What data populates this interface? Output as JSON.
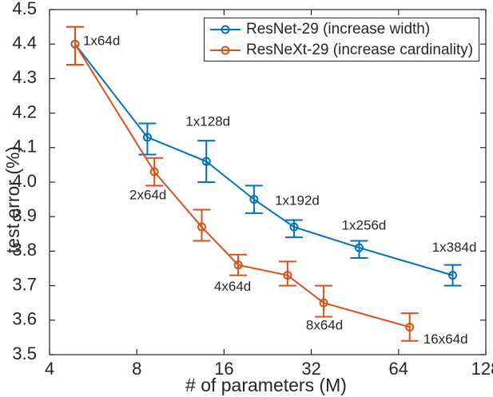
{
  "figure": {
    "background": "#ffffff",
    "axis_color": "#262626",
    "text_color": "#262626"
  },
  "chart_data": {
    "type": "line",
    "title": "",
    "xlabel": "# of parameters (M)",
    "ylabel": "test error (%)",
    "x_scale": "log2",
    "xlim": [
      4,
      128
    ],
    "ylim": [
      3.5,
      4.5
    ],
    "x_ticks": [
      4,
      8,
      16,
      32,
      64,
      128
    ],
    "x_tick_labels": [
      "4",
      "8",
      "16",
      "32",
      "64",
      "128"
    ],
    "y_ticks": [
      3.5,
      3.6,
      3.7,
      3.8,
      3.9,
      4.0,
      4.1,
      4.2,
      4.3,
      4.4,
      4.5
    ],
    "y_tick_labels": [
      "3.5",
      "3.6",
      "3.7",
      "3.8",
      "3.9",
      "4.0",
      "4.1",
      "4.2",
      "4.3",
      "4.4",
      "4.5"
    ],
    "grid": false,
    "legend_position": "top-right-inside",
    "series": [
      {
        "name": "ResNet-29 (increase width)",
        "color": "#0072BD",
        "points": [
          {
            "x": 4.9,
            "y": 4.4,
            "err_low": 4.34,
            "err_high": 4.45,
            "label": "1x64d",
            "label_dx": 10,
            "label_dy": -3,
            "label_anchor": "start"
          },
          {
            "x": 8.7,
            "y": 4.13,
            "err_low": 4.08,
            "err_high": 4.17
          },
          {
            "x": 13.9,
            "y": 4.06,
            "err_low": 4.0,
            "err_high": 4.12,
            "label": "1x128d",
            "label_dx": 2,
            "label_dy": -49
          },
          {
            "x": 20.3,
            "y": 3.95,
            "err_low": 3.91,
            "err_high": 3.99
          },
          {
            "x": 27.9,
            "y": 3.87,
            "err_low": 3.84,
            "err_high": 3.89,
            "label": "1x192d",
            "label_dx": 4,
            "label_dy": -32
          },
          {
            "x": 46.8,
            "y": 3.81,
            "err_low": 3.78,
            "err_high": 3.83,
            "label": "1x256d",
            "label_dx": 6,
            "label_dy": -27
          },
          {
            "x": 98.4,
            "y": 3.73,
            "err_low": 3.7,
            "err_high": 3.76,
            "label": "1x384d",
            "label_dx": 2,
            "label_dy": -34
          }
        ]
      },
      {
        "name": "ResNeXt-29 (increase cardinality)",
        "color": "#D95319",
        "points": [
          {
            "x": 4.9,
            "y": 4.4,
            "err_low": 4.34,
            "err_high": 4.45
          },
          {
            "x": 9.2,
            "y": 4.03,
            "err_low": 3.99,
            "err_high": 4.07,
            "label": "2x64d",
            "label_dx": -8,
            "label_dy": 30
          },
          {
            "x": 13.4,
            "y": 3.87,
            "err_low": 3.83,
            "err_high": 3.92
          },
          {
            "x": 17.9,
            "y": 3.76,
            "err_low": 3.73,
            "err_high": 3.79,
            "label": "4x64d",
            "label_dx": -7,
            "label_dy": 28
          },
          {
            "x": 26.5,
            "y": 3.73,
            "err_low": 3.7,
            "err_high": 3.77
          },
          {
            "x": 35.3,
            "y": 3.65,
            "err_low": 3.61,
            "err_high": 3.7,
            "label": "8x64d",
            "label_dx": 1,
            "label_dy": 29
          },
          {
            "x": 69.9,
            "y": 3.58,
            "err_low": 3.54,
            "err_high": 3.62,
            "label": "16x64d",
            "label_dx": 45,
            "label_dy": 16
          }
        ]
      }
    ]
  }
}
